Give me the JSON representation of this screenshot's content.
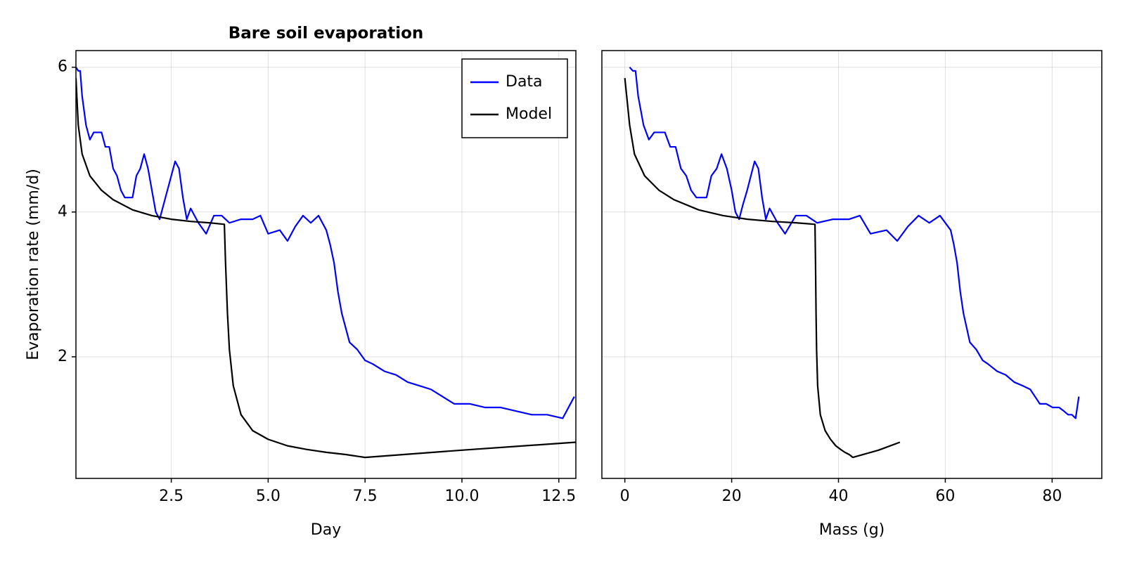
{
  "chart_data": [
    {
      "type": "line",
      "title": "Bare soil evaporation",
      "x_label": "Day",
      "y_label": "Evaporation rate (mm/d)",
      "xlim": [
        0.04,
        12.94
      ],
      "ylim": [
        0.32,
        6.23
      ],
      "xticks": [
        2.5,
        {
          "value": 5,
          "label": "5.0"
        },
        7.5,
        {
          "value": 10,
          "label": "10.0"
        },
        12.5
      ],
      "yticks": [
        2,
        4,
        6
      ],
      "grid": true,
      "legend": "top-right",
      "series": [
        {
          "name": "Data",
          "color": "#0000ff",
          "x": [
            0.04,
            0.1,
            0.15,
            0.2,
            0.3,
            0.4,
            0.5,
            0.7,
            0.8,
            0.9,
            1.0,
            1.1,
            1.2,
            1.3,
            1.5,
            1.6,
            1.7,
            1.8,
            1.9,
            2.0,
            2.1,
            2.2,
            2.3,
            2.4,
            2.5,
            2.6,
            2.7,
            2.8,
            2.9,
            3.0,
            3.2,
            3.4,
            3.6,
            3.8,
            4.0,
            4.3,
            4.6,
            4.8,
            5.0,
            5.3,
            5.5,
            5.7,
            5.9,
            6.1,
            6.3,
            6.5,
            6.6,
            6.7,
            6.8,
            6.9,
            7.0,
            7.1,
            7.3,
            7.5,
            7.7,
            8.0,
            8.3,
            8.6,
            8.9,
            9.2,
            9.5,
            9.8,
            10.2,
            10.6,
            11.0,
            11.4,
            11.8,
            12.2,
            12.6,
            12.9
          ],
          "values": [
            6.0,
            5.95,
            5.95,
            5.6,
            5.2,
            5.0,
            5.1,
            5.1,
            4.9,
            4.9,
            4.6,
            4.5,
            4.3,
            4.2,
            4.2,
            4.5,
            4.6,
            4.8,
            4.6,
            4.3,
            4.0,
            3.9,
            4.1,
            4.3,
            4.5,
            4.7,
            4.6,
            4.2,
            3.9,
            4.05,
            3.85,
            3.7,
            3.95,
            3.95,
            3.85,
            3.9,
            3.9,
            3.95,
            3.7,
            3.75,
            3.6,
            3.8,
            3.95,
            3.85,
            3.95,
            3.75,
            3.55,
            3.3,
            2.9,
            2.6,
            2.4,
            2.2,
            2.1,
            1.95,
            1.9,
            1.8,
            1.75,
            1.65,
            1.6,
            1.55,
            1.45,
            1.35,
            1.35,
            1.3,
            1.3,
            1.25,
            1.2,
            1.2,
            1.15,
            1.45
          ]
        },
        {
          "name": "Model",
          "color": "#000000",
          "x": [
            0.04,
            0.1,
            0.2,
            0.4,
            0.7,
            1,
            1.5,
            2,
            2.5,
            3,
            3.5,
            3.87,
            3.9,
            3.95,
            4.0,
            4.1,
            4.3,
            4.6,
            5.0,
            5.5,
            6.0,
            6.5,
            7.0,
            7.5,
            10,
            12.94
          ],
          "values": [
            5.85,
            5.2,
            4.8,
            4.5,
            4.3,
            4.17,
            4.03,
            3.95,
            3.9,
            3.87,
            3.85,
            3.83,
            3.3,
            2.6,
            2.1,
            1.6,
            1.2,
            0.98,
            0.86,
            0.77,
            0.72,
            0.68,
            0.65,
            0.61,
            0.71,
            0.82
          ]
        }
      ]
    },
    {
      "type": "line",
      "x_label": "Mass (g)",
      "xlim": [
        -4.3,
        89.3
      ],
      "ylim": [
        0.32,
        6.23
      ],
      "xticks": [
        0,
        20,
        40,
        60,
        80
      ],
      "yticks": [
        2,
        4,
        6
      ],
      "grid": true,
      "series": [
        {
          "color": "#0000ff",
          "x": [
            0.9,
            1.5,
            2,
            2.5,
            3.5,
            4.5,
            5.5,
            7.5,
            8.5,
            9.5,
            10.5,
            11.5,
            12.4,
            13.4,
            15.3,
            16.2,
            17.2,
            18.1,
            19.1,
            20,
            20.7,
            21.4,
            22.1,
            22.9,
            23.6,
            24.3,
            25,
            25.7,
            26.4,
            27.1,
            28.6,
            30,
            32,
            34,
            36,
            39,
            42,
            44,
            46,
            49,
            51,
            53,
            55,
            57,
            59,
            61,
            61.6,
            62.2,
            62.8,
            63.4,
            64,
            64.6,
            65.8,
            67,
            68,
            69.7,
            71.3,
            72.9,
            74.5,
            75.9,
            76.8,
            77.7,
            78.9,
            80.1,
            81.3,
            82.2,
            83,
            83.7,
            84.4,
            85
          ],
          "values": [
            6.0,
            5.95,
            5.95,
            5.6,
            5.2,
            5.0,
            5.1,
            5.1,
            4.9,
            4.9,
            4.6,
            4.5,
            4.3,
            4.2,
            4.2,
            4.5,
            4.6,
            4.8,
            4.6,
            4.3,
            4.0,
            3.9,
            4.1,
            4.3,
            4.5,
            4.7,
            4.6,
            4.2,
            3.9,
            4.05,
            3.85,
            3.7,
            3.95,
            3.95,
            3.85,
            3.9,
            3.9,
            3.95,
            3.7,
            3.75,
            3.6,
            3.8,
            3.95,
            3.85,
            3.95,
            3.75,
            3.55,
            3.3,
            2.9,
            2.6,
            2.4,
            2.2,
            2.1,
            1.95,
            1.9,
            1.8,
            1.75,
            1.65,
            1.6,
            1.55,
            1.45,
            1.35,
            1.35,
            1.3,
            1.3,
            1.25,
            1.2,
            1.2,
            1.15,
            1.45
          ]
        },
        {
          "color": "#000000",
          "x": [
            0,
            0.9,
            1.8,
            3.7,
            6.4,
            9.2,
            13.8,
            18.4,
            23,
            27.6,
            32.2,
            35.6,
            35.7,
            35.8,
            35.9,
            36.1,
            36.6,
            37.5,
            38.5,
            39.5,
            40.4,
            41.2,
            42,
            42.7,
            47.5,
            51.5
          ],
          "values": [
            5.85,
            5.2,
            4.8,
            4.5,
            4.3,
            4.17,
            4.03,
            3.95,
            3.9,
            3.87,
            3.85,
            3.83,
            3.3,
            2.6,
            2.1,
            1.6,
            1.2,
            0.98,
            0.86,
            0.77,
            0.72,
            0.68,
            0.65,
            0.61,
            0.71,
            0.82
          ]
        }
      ]
    }
  ]
}
